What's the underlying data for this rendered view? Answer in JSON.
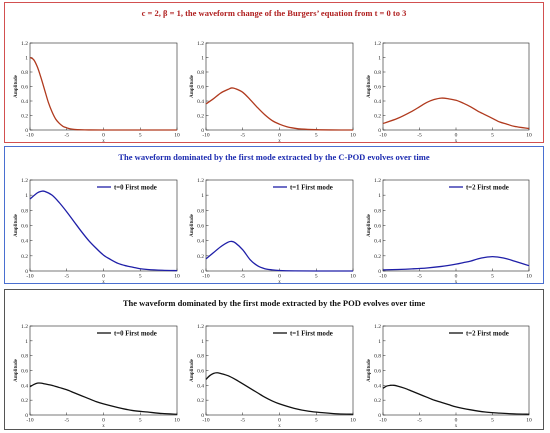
{
  "colors": {
    "burgers": "#b03a1e",
    "cpod": "#1f1fa8",
    "pod": "#111111",
    "border_top": "#d25050",
    "border_mid": "#4a6fd0",
    "border_bot": "#555555",
    "title_top": "#b02020",
    "title_mid": "#1c2bb0",
    "title_bot": "#111111"
  },
  "panels": [
    {
      "title": "c = 2, β = 1, the waveform change of the Burgers’ equation from t = 0 to 3",
      "titleColorKey": "title_top",
      "borderKey": "border_top",
      "lineKey": "burgers",
      "charts": [
        {
          "legend": ""
        },
        {
          "legend": ""
        },
        {
          "legend": ""
        }
      ]
    },
    {
      "title": "The waveform dominated by the first mode extracted by the C-POD evolves over time",
      "titleColorKey": "title_mid",
      "borderKey": "border_mid",
      "lineKey": "cpod",
      "charts": [
        {
          "legend": "t=0 First mode"
        },
        {
          "legend": "t=1 First mode"
        },
        {
          "legend": "t=2 First mode"
        }
      ]
    },
    {
      "title": "The waveform dominated by the first mode extracted by the POD evolves over time",
      "titleColorKey": "title_bot",
      "borderKey": "border_bot",
      "lineKey": "pod",
      "charts": [
        {
          "legend": "t=0 First mode"
        },
        {
          "legend": "t=1 First mode"
        },
        {
          "legend": "t=2 First mode"
        }
      ]
    }
  ],
  "chart_data": [
    {
      "type": "line",
      "panel": 0,
      "xlabel": "x",
      "ylabel": "Amplitude",
      "xlim": [
        -10,
        10
      ],
      "ylim": [
        0,
        1.2
      ],
      "xticks": [
        -10,
        -5,
        0,
        5,
        10
      ],
      "yticks": [
        0,
        0.2,
        0.4,
        0.6,
        0.8,
        1,
        1.2
      ],
      "series": [
        {
          "x": [
            -10,
            -9.5,
            -9,
            -8.5,
            -8,
            -7.5,
            -7,
            -6.5,
            -6,
            -5.5,
            -5,
            -4.5,
            -4,
            -3,
            -2,
            0,
            5,
            10
          ],
          "y": [
            1.0,
            0.97,
            0.87,
            0.72,
            0.55,
            0.38,
            0.25,
            0.15,
            0.09,
            0.05,
            0.03,
            0.015,
            0.008,
            0.003,
            0.001,
            0.0,
            0.0,
            0.0
          ]
        }
      ]
    },
    {
      "type": "line",
      "panel": 0,
      "xlabel": "x",
      "ylabel": "Amplitude",
      "xlim": [
        -10,
        10
      ],
      "ylim": [
        0,
        1.2
      ],
      "xticks": [
        -10,
        -5,
        0,
        5,
        10
      ],
      "yticks": [
        0,
        0.2,
        0.4,
        0.6,
        0.8,
        1,
        1.2
      ],
      "series": [
        {
          "x": [
            -10,
            -9,
            -8,
            -7,
            -6.5,
            -6,
            -5,
            -4,
            -3,
            -2,
            -1,
            0,
            1,
            2,
            3,
            5,
            7,
            10
          ],
          "y": [
            0.36,
            0.43,
            0.51,
            0.56,
            0.58,
            0.57,
            0.52,
            0.42,
            0.31,
            0.21,
            0.13,
            0.08,
            0.045,
            0.025,
            0.013,
            0.004,
            0.001,
            0.0
          ]
        }
      ]
    },
    {
      "type": "line",
      "panel": 0,
      "xlabel": "x",
      "ylabel": "Amplitude",
      "xlim": [
        -10,
        10
      ],
      "ylim": [
        0,
        1.2
      ],
      "xticks": [
        -10,
        -5,
        0,
        5,
        10
      ],
      "yticks": [
        0,
        0.2,
        0.4,
        0.6,
        0.8,
        1,
        1.2
      ],
      "series": [
        {
          "x": [
            -10,
            -8,
            -6,
            -5,
            -4,
            -3,
            -2,
            -1,
            0,
            1,
            2,
            3,
            4,
            5,
            6,
            7,
            8,
            10
          ],
          "y": [
            0.09,
            0.16,
            0.26,
            0.32,
            0.38,
            0.42,
            0.44,
            0.43,
            0.41,
            0.37,
            0.32,
            0.26,
            0.21,
            0.16,
            0.11,
            0.08,
            0.05,
            0.02
          ]
        }
      ]
    },
    {
      "type": "line",
      "panel": 1,
      "xlabel": "x",
      "ylabel": "Amplitude",
      "xlim": [
        -10,
        10
      ],
      "ylim": [
        0,
        1.2
      ],
      "xticks": [
        -10,
        -5,
        0,
        5,
        10
      ],
      "yticks": [
        0,
        0.2,
        0.4,
        0.6,
        0.8,
        1,
        1.2
      ],
      "series": [
        {
          "name": "t=0 First mode",
          "x": [
            -10,
            -9,
            -8.5,
            -8,
            -7,
            -6,
            -5,
            -4,
            -3,
            -2,
            -1,
            0,
            1,
            2,
            3,
            4,
            5,
            6,
            8,
            10
          ],
          "y": [
            0.95,
            1.03,
            1.05,
            1.05,
            1.0,
            0.9,
            0.78,
            0.65,
            0.52,
            0.4,
            0.3,
            0.21,
            0.15,
            0.1,
            0.07,
            0.05,
            0.03,
            0.02,
            0.01,
            0.005
          ]
        }
      ]
    },
    {
      "type": "line",
      "panel": 1,
      "xlabel": "x",
      "ylabel": "Amplitude",
      "xlim": [
        -10,
        10
      ],
      "ylim": [
        0,
        1.2
      ],
      "xticks": [
        -10,
        -5,
        0,
        5,
        10
      ],
      "yticks": [
        0,
        0.2,
        0.4,
        0.6,
        0.8,
        1,
        1.2
      ],
      "series": [
        {
          "name": "t=1 First mode",
          "x": [
            -10,
            -9,
            -8,
            -7,
            -6.5,
            -6,
            -5,
            -4,
            -3,
            -2,
            -1,
            0,
            2,
            5,
            10
          ],
          "y": [
            0.16,
            0.24,
            0.32,
            0.38,
            0.39,
            0.37,
            0.28,
            0.15,
            0.07,
            0.03,
            0.015,
            0.007,
            0.002,
            0.0,
            0.0
          ]
        }
      ]
    },
    {
      "type": "line",
      "panel": 1,
      "xlabel": "x",
      "ylabel": "Amplitude",
      "xlim": [
        -10,
        10
      ],
      "ylim": [
        0,
        1.2
      ],
      "xticks": [
        -10,
        -5,
        0,
        5,
        10
      ],
      "yticks": [
        0,
        0.2,
        0.4,
        0.6,
        0.8,
        1,
        1.2
      ],
      "series": [
        {
          "name": "t=2 First mode",
          "x": [
            -10,
            -8,
            -6,
            -4,
            -2,
            0,
            1,
            2,
            3,
            4,
            5,
            6,
            7,
            8,
            9,
            10
          ],
          "y": [
            0.015,
            0.02,
            0.028,
            0.04,
            0.06,
            0.09,
            0.11,
            0.13,
            0.16,
            0.18,
            0.19,
            0.18,
            0.16,
            0.13,
            0.1,
            0.07
          ]
        }
      ]
    },
    {
      "type": "line",
      "panel": 2,
      "xlabel": "x",
      "ylabel": "Amplitude",
      "xlim": [
        -10,
        10
      ],
      "ylim": [
        0,
        1.2
      ],
      "xticks": [
        -10,
        -5,
        0,
        5,
        10
      ],
      "yticks": [
        0,
        0.2,
        0.4,
        0.6,
        0.8,
        1,
        1.2
      ],
      "series": [
        {
          "name": "t=0 First mode",
          "x": [
            -10,
            -9.5,
            -9,
            -8.5,
            -8,
            -7,
            -6,
            -5,
            -4,
            -3,
            -2,
            -1,
            0,
            2,
            4,
            6,
            8,
            10
          ],
          "y": [
            0.38,
            0.41,
            0.43,
            0.43,
            0.42,
            0.4,
            0.37,
            0.34,
            0.3,
            0.26,
            0.22,
            0.18,
            0.15,
            0.1,
            0.06,
            0.04,
            0.02,
            0.01
          ]
        }
      ]
    },
    {
      "type": "line",
      "panel": 2,
      "xlabel": "x",
      "ylabel": "Amplitude",
      "xlim": [
        -10,
        10
      ],
      "ylim": [
        0,
        1.2
      ],
      "xticks": [
        -10,
        -5,
        0,
        5,
        10
      ],
      "yticks": [
        0,
        0.2,
        0.4,
        0.6,
        0.8,
        1,
        1.2
      ],
      "series": [
        {
          "name": "t=1 First mode",
          "x": [
            -10,
            -9.5,
            -9,
            -8.5,
            -8,
            -7,
            -6,
            -5,
            -4,
            -3,
            -2,
            -1,
            0,
            2,
            4,
            6,
            8,
            10
          ],
          "y": [
            0.48,
            0.53,
            0.56,
            0.57,
            0.56,
            0.53,
            0.48,
            0.42,
            0.36,
            0.3,
            0.24,
            0.19,
            0.15,
            0.09,
            0.05,
            0.03,
            0.015,
            0.01
          ]
        }
      ]
    },
    {
      "type": "line",
      "panel": 2,
      "xlabel": "x",
      "ylabel": "Amplitude",
      "xlim": [
        -10,
        10
      ],
      "ylim": [
        0,
        1.2
      ],
      "xticks": [
        -10,
        -5,
        0,
        5,
        10
      ],
      "yticks": [
        0,
        0.2,
        0.4,
        0.6,
        0.8,
        1,
        1.2
      ],
      "series": [
        {
          "name": "t=2 First mode",
          "x": [
            -10,
            -9.5,
            -9,
            -8.5,
            -8,
            -7,
            -6,
            -5,
            -4,
            -3,
            -2,
            -1,
            0,
            2,
            4,
            6,
            8,
            10
          ],
          "y": [
            0.36,
            0.39,
            0.4,
            0.4,
            0.39,
            0.36,
            0.32,
            0.28,
            0.24,
            0.2,
            0.17,
            0.14,
            0.11,
            0.07,
            0.04,
            0.025,
            0.015,
            0.01
          ]
        }
      ]
    }
  ]
}
